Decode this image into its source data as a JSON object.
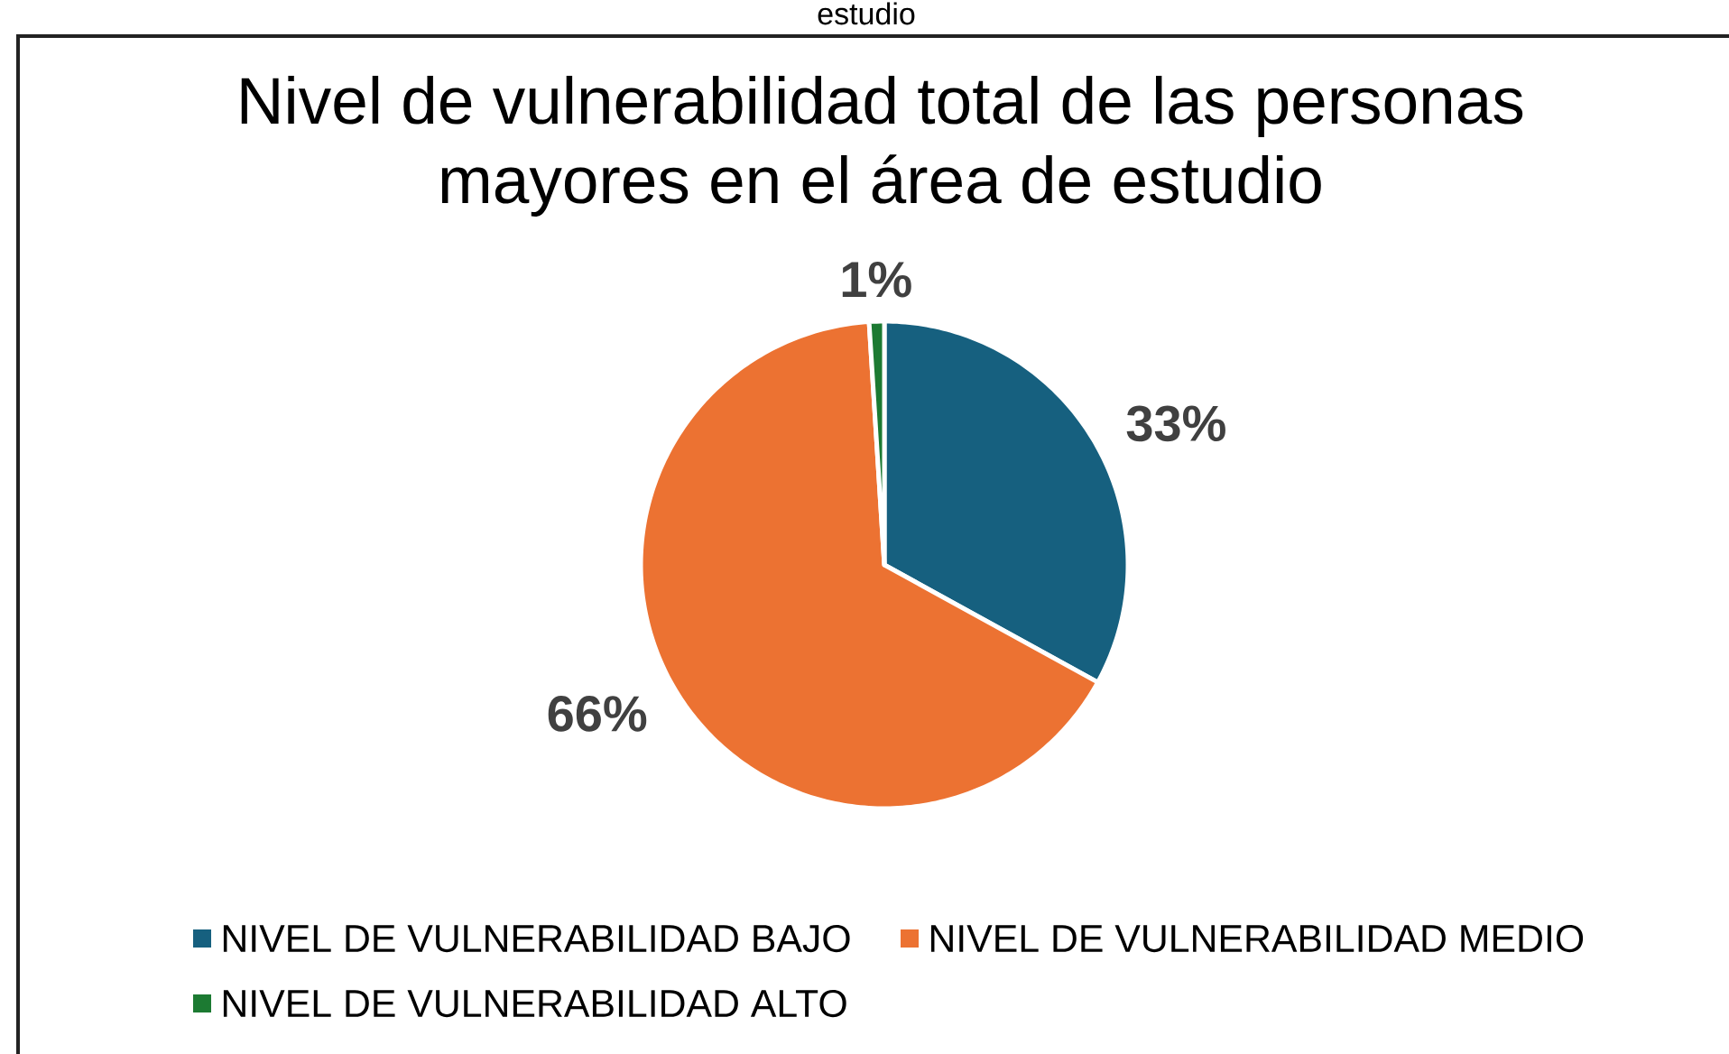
{
  "chart_data": {
    "type": "pie",
    "title": "Nivel de vulnerabilidad total de las personas mayores en el área de estudio",
    "categories": [
      "NIVEL DE VULNERABILIDAD BAJO",
      "NIVEL DE VULNERABILIDAD MEDIO",
      "NIVEL DE VULNERABILIDAD ALTO"
    ],
    "values": [
      33,
      66,
      1
    ],
    "colors": [
      "#16607f",
      "#ec7232",
      "#1c7a32"
    ],
    "value_labels": [
      "33%",
      "66%",
      "1%"
    ],
    "legend": "bottom",
    "annotations": [
      "estudio"
    ]
  }
}
